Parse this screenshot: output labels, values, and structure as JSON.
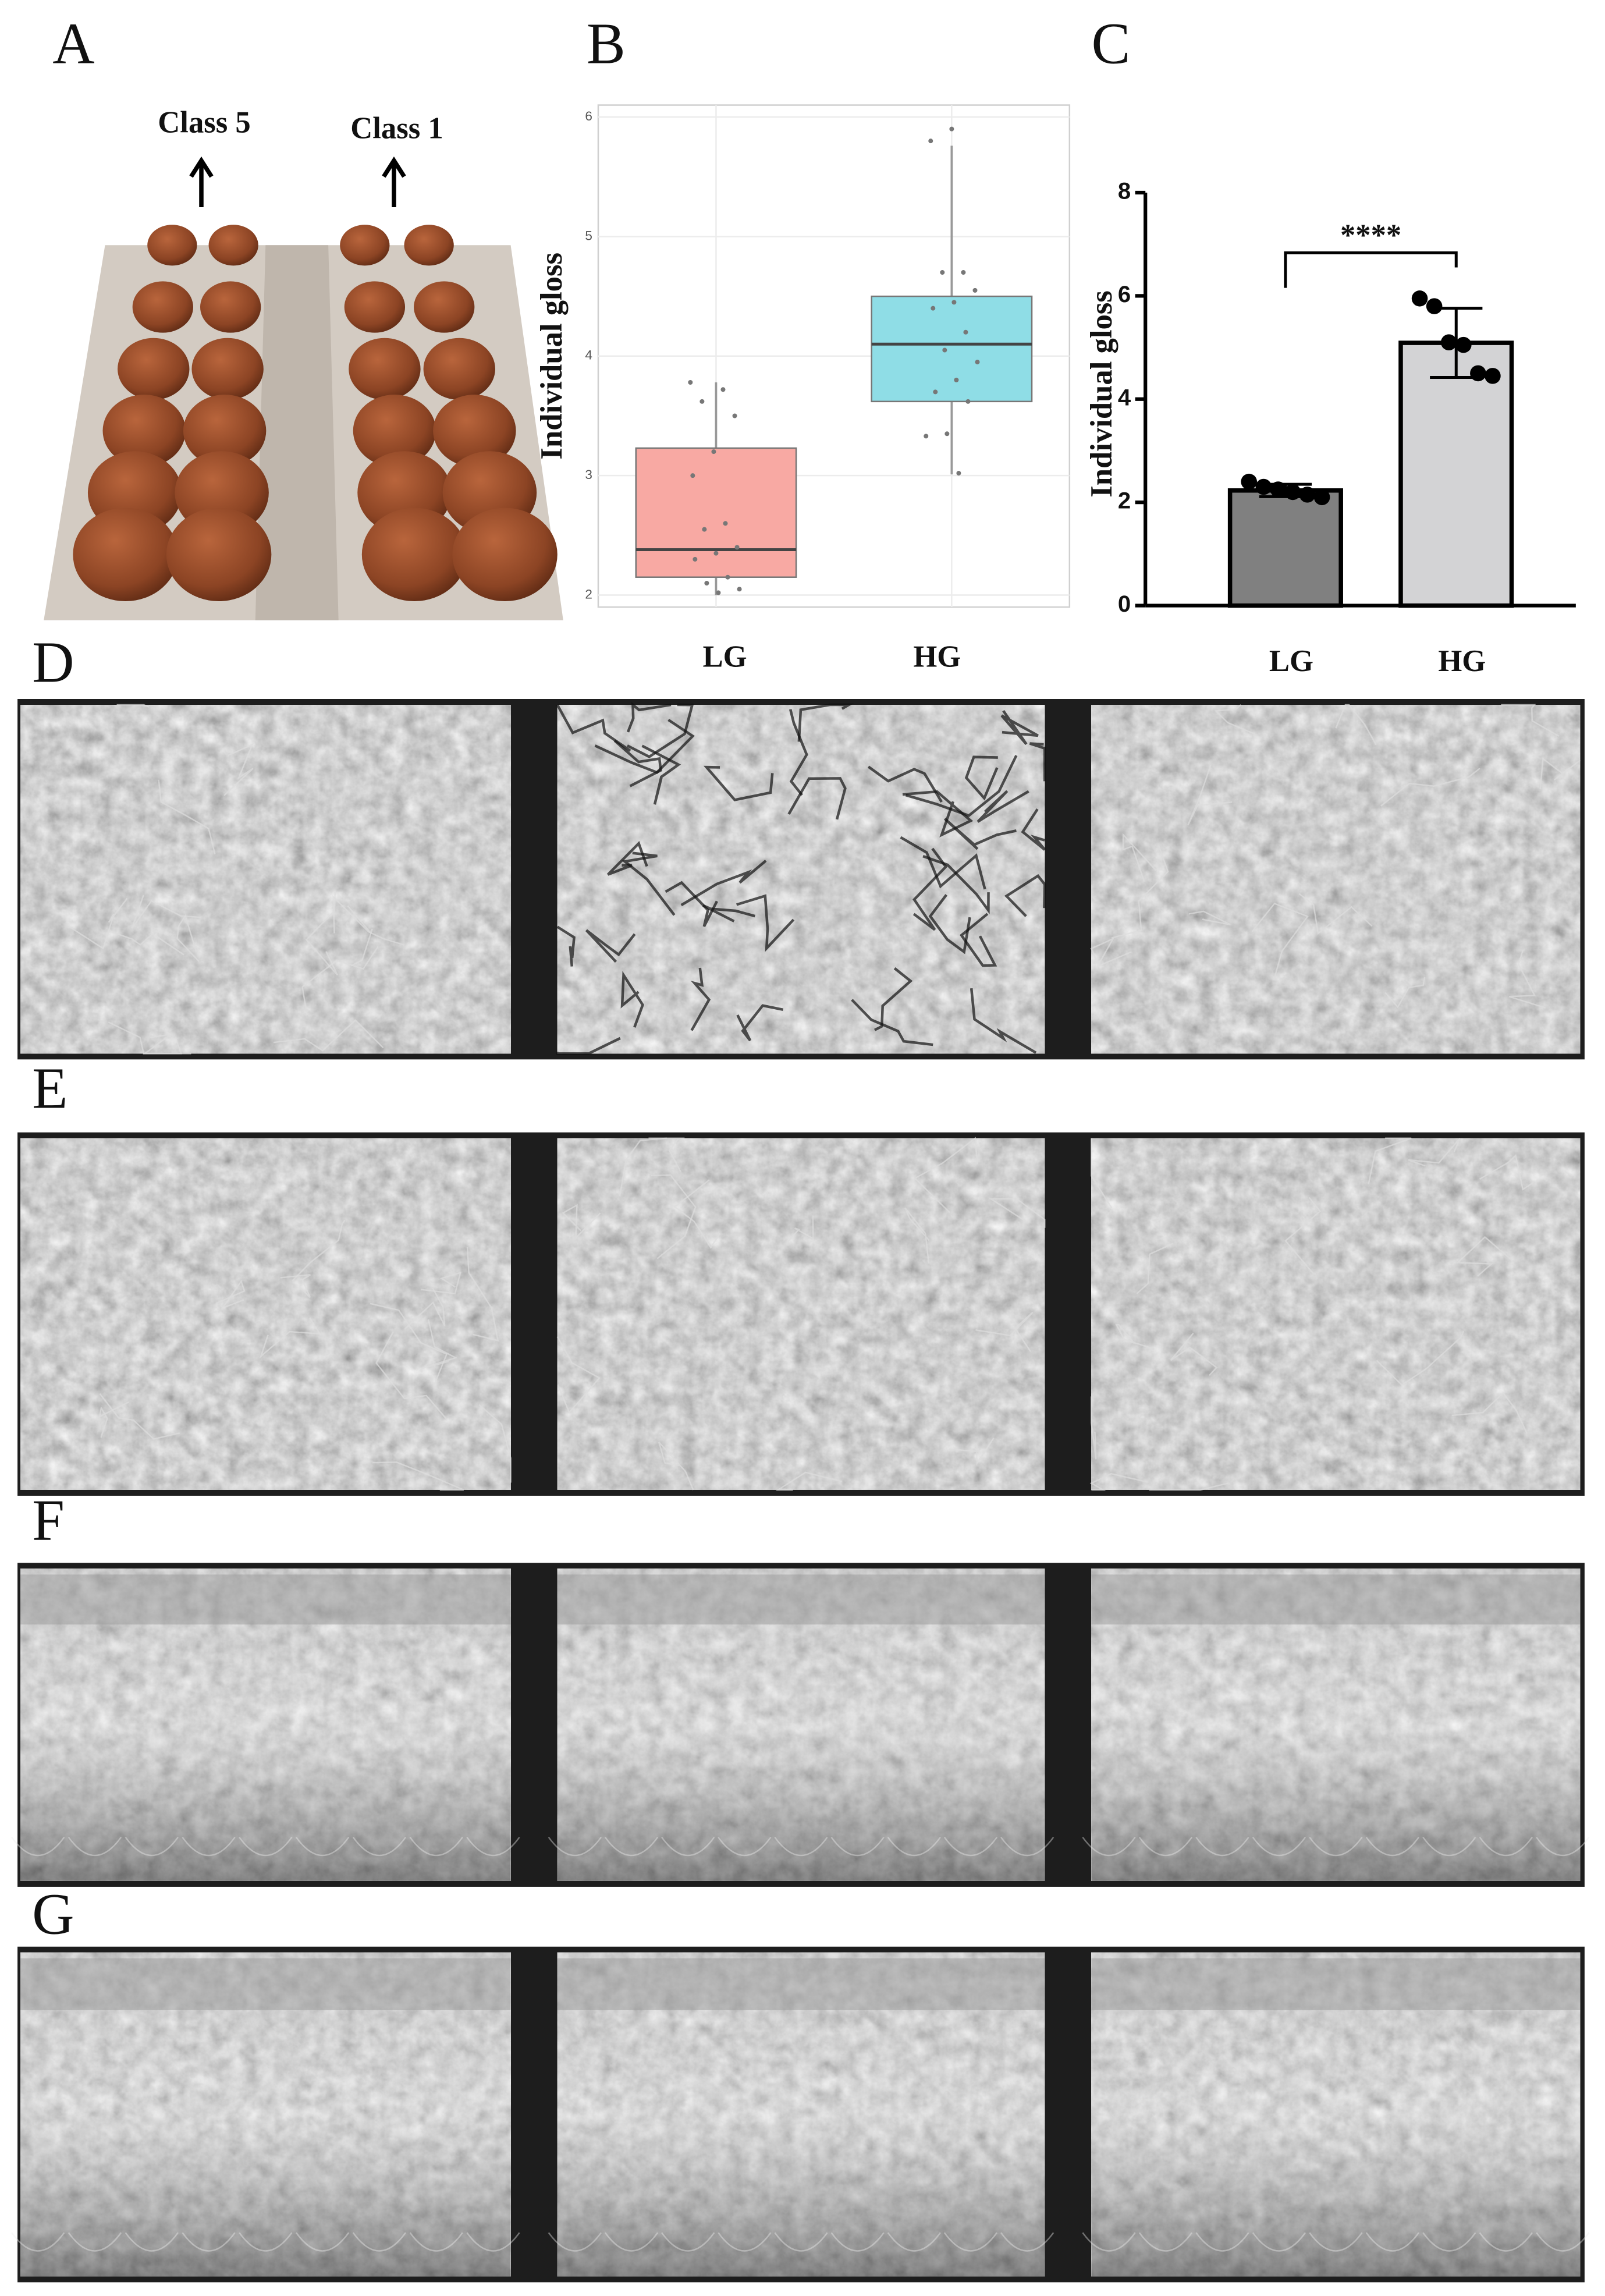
{
  "panel_labels": [
    "A",
    "B",
    "C",
    "D",
    "E",
    "F",
    "G"
  ],
  "egg_classes": [
    "Class 5",
    "Class 1"
  ],
  "chart_data": [
    {
      "type": "box",
      "y_label": "Individual gloss",
      "categories": [
        "LG",
        "HG"
      ],
      "ylim": [
        1.9,
        6.1
      ],
      "yticks": [
        2,
        3,
        4,
        5,
        6
      ],
      "grid": true,
      "boxes": [
        {
          "color": "#f8a9a3",
          "whisker_low": 2.0,
          "q1": 2.15,
          "median": 2.38,
          "q3": 3.23,
          "whisker_high": 3.78,
          "points": [
            3.78,
            3.72,
            3.62,
            3.5,
            3.2,
            3.0,
            2.6,
            2.55,
            2.4,
            2.35,
            2.3,
            2.15,
            2.1,
            2.05,
            2.02
          ]
        },
        {
          "color": "#8fdde6",
          "whisker_low": 3.01,
          "q1": 3.62,
          "median": 4.1,
          "q3": 4.5,
          "whisker_high": 5.76,
          "points": [
            5.9,
            5.8,
            4.7,
            4.7,
            4.55,
            4.45,
            4.4,
            4.2,
            4.05,
            3.95,
            3.8,
            3.7,
            3.62,
            3.35,
            3.33,
            3.02
          ]
        }
      ]
    },
    {
      "type": "bar",
      "y_label": "Individual gloss",
      "categories": [
        "LG",
        "HG"
      ],
      "values": [
        2.23,
        5.09
      ],
      "errors": [
        0.12,
        0.67
      ],
      "colors": [
        "#808080",
        "#d3d3d5"
      ],
      "points": [
        [
          2.4,
          2.3,
          2.25,
          2.2,
          2.15,
          2.1
        ],
        [
          5.95,
          5.8,
          5.1,
          5.05,
          4.5,
          4.45
        ]
      ],
      "ylim": [
        0,
        8
      ],
      "yticks": [
        0,
        2,
        4,
        6,
        8
      ],
      "significance": "****"
    }
  ]
}
